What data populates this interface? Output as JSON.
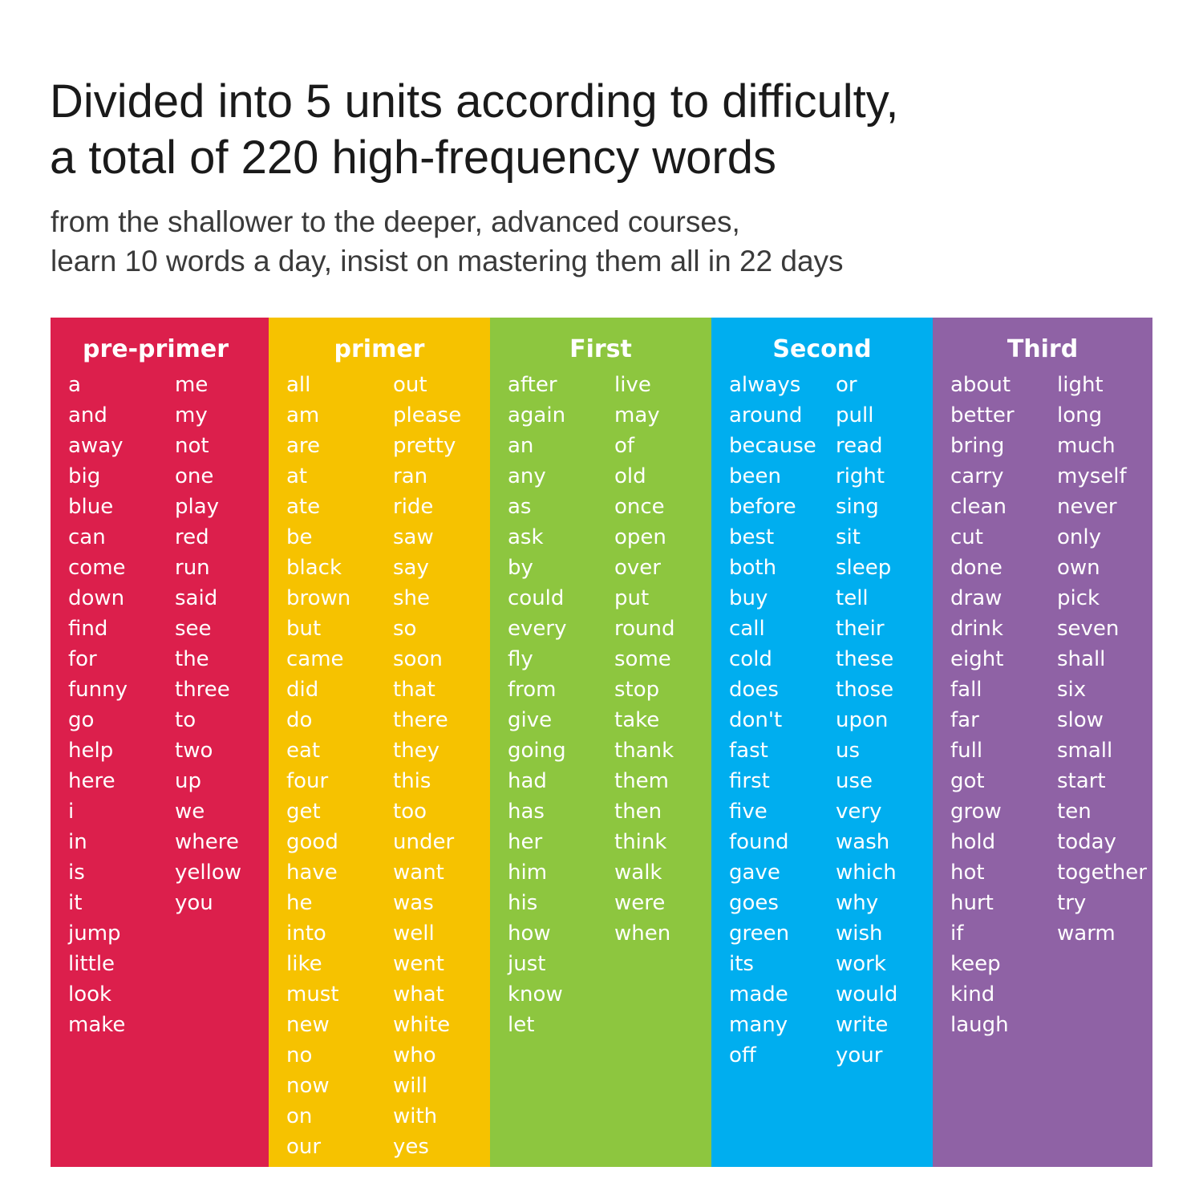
{
  "header": {
    "title_line1": "Divided into 5 units according to difficulty,",
    "title_line2": "a total of 220 high-frequency words",
    "subtitle_line1": "from the shallower to the deeper, advanced courses,",
    "subtitle_line2": "learn 10 words a day, insist on mastering them all in 22 days"
  },
  "units": [
    {
      "title": "pre-primer",
      "color": "#dc1f4c",
      "col1": [
        "a",
        "and",
        "away",
        "big",
        "blue",
        "can",
        "come",
        "down",
        "find",
        "for",
        "funny",
        "go",
        "help",
        "here",
        "i",
        "in",
        "is",
        "it",
        "jump",
        "little",
        "look",
        "make"
      ],
      "col2": [
        "me",
        "my",
        "not",
        "one",
        "play",
        "red",
        "run",
        "said",
        "see",
        "the",
        "three",
        "to",
        "two",
        "up",
        "we",
        "where",
        "yellow",
        "you"
      ]
    },
    {
      "title": "primer",
      "color": "#f6c200",
      "col1": [
        "all",
        "am",
        "are",
        "at",
        "ate",
        "be",
        "black",
        "brown",
        "but",
        "came",
        "did",
        "do",
        "eat",
        "four",
        "get",
        "good",
        "have",
        "he",
        "into",
        "like",
        "must",
        "new",
        "no",
        "now",
        "on",
        "our"
      ],
      "col2": [
        "out",
        "please",
        "pretty",
        "ran",
        "ride",
        "saw",
        "say",
        "she",
        "so",
        "soon",
        "that",
        "there",
        "they",
        "this",
        "too",
        "under",
        "want",
        "was",
        "well",
        "went",
        "what",
        "white",
        "who",
        "will",
        "with",
        "yes"
      ]
    },
    {
      "title": "First",
      "color": "#8dc63f",
      "col1": [
        "after",
        "again",
        "an",
        "any",
        "as",
        "ask",
        "by",
        "could",
        "every",
        "fly",
        "from",
        "give",
        "going",
        "had",
        "has",
        "her",
        "him",
        "his",
        "how",
        "just",
        "know",
        "let"
      ],
      "col2": [
        "live",
        "may",
        "of",
        "old",
        "once",
        "open",
        "over",
        "put",
        "round",
        "some",
        "stop",
        "take",
        "thank",
        "them",
        "then",
        "think",
        "walk",
        "were",
        "when"
      ]
    },
    {
      "title": "Second",
      "color": "#00aeef",
      "col1": [
        "always",
        "around",
        "because",
        "been",
        "before",
        "best",
        "both",
        "buy",
        "call",
        "cold",
        "does",
        "don't",
        "fast",
        "first",
        "five",
        "found",
        "gave",
        "goes",
        "green",
        "its",
        "made",
        "many",
        "off"
      ],
      "col2": [
        "or",
        "pull",
        "read",
        "right",
        "sing",
        "sit",
        "sleep",
        "tell",
        "their",
        "these",
        "those",
        "upon",
        "us",
        "use",
        "very",
        "wash",
        "which",
        "why",
        "wish",
        "work",
        "would",
        "write",
        "your"
      ]
    },
    {
      "title": "Third",
      "color": "#8f62a5",
      "col1": [
        "about",
        "better",
        "bring",
        "carry",
        "clean",
        "cut",
        "done",
        "draw",
        "drink",
        "eight",
        "fall",
        "far",
        "full",
        "got",
        "grow",
        "hold",
        "hot",
        "hurt",
        "if",
        "keep",
        "kind",
        "laugh"
      ],
      "col2": [
        "light",
        "long",
        "much",
        "myself",
        "never",
        "only",
        "own",
        "pick",
        "seven",
        "shall",
        "six",
        "slow",
        "small",
        "start",
        "ten",
        "today",
        "together",
        "try",
        "warm"
      ]
    }
  ]
}
